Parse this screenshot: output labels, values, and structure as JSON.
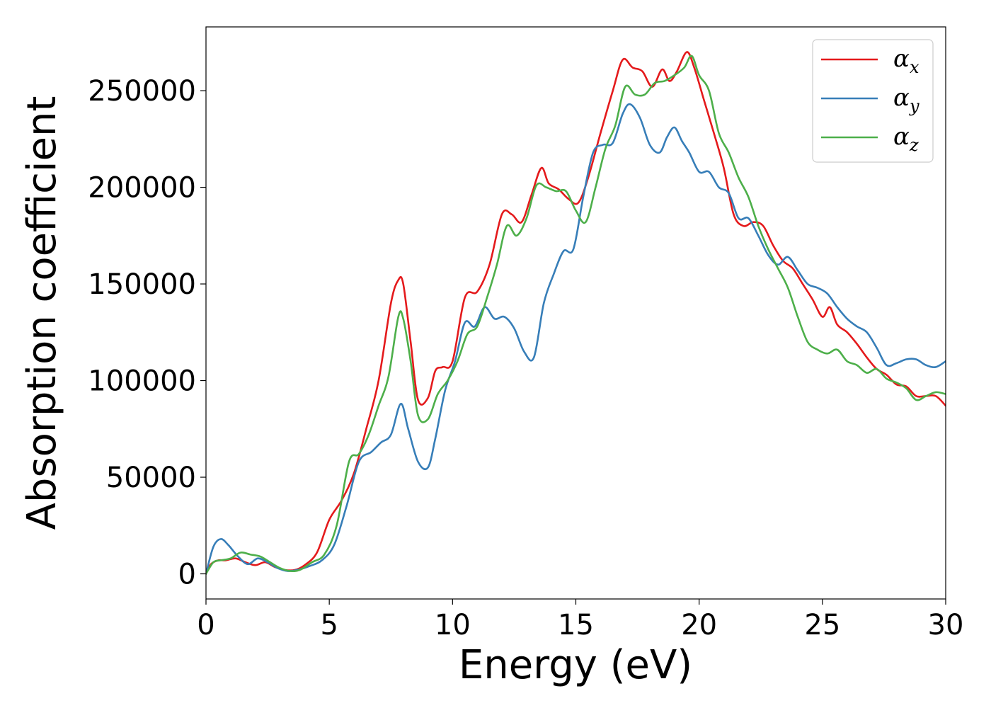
{
  "chart_data": {
    "type": "line",
    "title": "",
    "xlabel": "Energy (eV)",
    "ylabel": "Absorption coefficient",
    "xlim": [
      0,
      30
    ],
    "ylim": [
      -13000,
      283000
    ],
    "xticks": [
      0,
      5,
      10,
      15,
      20,
      25,
      30
    ],
    "xtick_labels": [
      "0",
      "5",
      "10",
      "15",
      "20",
      "25",
      "30"
    ],
    "yticks": [
      0,
      50000,
      100000,
      150000,
      200000,
      250000
    ],
    "ytick_labels": [
      "0",
      "50000",
      "100000",
      "150000",
      "200000",
      "250000"
    ],
    "grid": false,
    "legend_position": "top-right",
    "series": [
      {
        "name": "α",
        "subscript": "x",
        "color": "#e41a1c",
        "x": [
          0,
          0.2,
          0.5,
          0.8,
          1.2,
          1.6,
          2.0,
          2.4,
          2.8,
          3.2,
          3.6,
          4.0,
          4.5,
          5.0,
          5.5,
          6.0,
          6.5,
          7.0,
          7.5,
          7.8,
          8.0,
          8.3,
          8.6,
          9.0,
          9.3,
          9.6,
          10.0,
          10.5,
          11.0,
          11.5,
          12.0,
          12.4,
          12.8,
          13.2,
          13.6,
          13.9,
          14.3,
          14.7,
          15.1,
          15.5,
          16.0,
          16.5,
          16.9,
          17.3,
          17.7,
          18.1,
          18.5,
          18.8,
          19.1,
          19.5,
          19.8,
          20.2,
          20.6,
          21.0,
          21.4,
          21.8,
          22.2,
          22.6,
          23.0,
          23.4,
          23.8,
          24.2,
          24.6,
          25.0,
          25.3,
          25.6,
          26.0,
          26.4,
          26.8,
          27.2,
          27.6,
          28.0,
          28.4,
          28.8,
          29.2,
          29.6,
          30.0
        ],
        "values": [
          0,
          5000,
          7000,
          7000,
          8000,
          6000,
          4500,
          6000,
          3500,
          2000,
          2000,
          4500,
          11000,
          28000,
          38000,
          52000,
          75000,
          100000,
          140000,
          152000,
          150000,
          120000,
          90000,
          91000,
          105000,
          107000,
          110000,
          143000,
          146000,
          160000,
          186000,
          186000,
          182000,
          196000,
          210000,
          202000,
          199000,
          194000,
          192000,
          205000,
          228000,
          250000,
          266000,
          262000,
          260000,
          252000,
          261000,
          255000,
          260000,
          270000,
          262000,
          245000,
          228000,
          210000,
          186000,
          180000,
          182000,
          180000,
          170000,
          162000,
          158000,
          150000,
          142000,
          133000,
          138000,
          129000,
          125000,
          119000,
          112000,
          106000,
          103000,
          98000,
          97000,
          92000,
          92000,
          92000,
          87000
        ]
      },
      {
        "name": "α",
        "subscript": "y",
        "color": "#377eb8",
        "x": [
          0,
          0.3,
          0.6,
          0.9,
          1.3,
          1.7,
          2.1,
          2.5,
          2.9,
          3.3,
          3.7,
          4.2,
          4.7,
          5.2,
          5.7,
          6.2,
          6.7,
          7.1,
          7.5,
          7.9,
          8.2,
          8.6,
          9.0,
          9.3,
          9.7,
          10.1,
          10.5,
          10.9,
          11.3,
          11.7,
          12.1,
          12.5,
          12.9,
          13.3,
          13.7,
          14.1,
          14.5,
          14.9,
          15.3,
          15.7,
          16.1,
          16.5,
          16.9,
          17.2,
          17.6,
          18.0,
          18.4,
          18.7,
          19.0,
          19.3,
          19.6,
          20.0,
          20.4,
          20.8,
          21.2,
          21.6,
          22.0,
          22.4,
          22.8,
          23.2,
          23.6,
          24.0,
          24.4,
          24.8,
          25.2,
          25.6,
          26.0,
          26.4,
          26.8,
          27.2,
          27.6,
          28.0,
          28.4,
          28.8,
          29.2,
          29.6,
          30.0
        ],
        "values": [
          0,
          14000,
          18000,
          15000,
          9000,
          5000,
          8000,
          6000,
          3000,
          1500,
          2000,
          4000,
          7000,
          15000,
          35000,
          58000,
          63000,
          68000,
          72000,
          88000,
          75000,
          58000,
          55000,
          70000,
          95000,
          110000,
          130000,
          128000,
          138000,
          132000,
          133000,
          127000,
          115000,
          112000,
          140000,
          155000,
          167000,
          168000,
          195000,
          218000,
          222000,
          223000,
          238000,
          243000,
          236000,
          222000,
          218000,
          226000,
          231000,
          224000,
          218000,
          208000,
          208000,
          200000,
          197000,
          184000,
          184000,
          175000,
          165000,
          160000,
          164000,
          157000,
          150000,
          148000,
          145000,
          138000,
          132000,
          128000,
          125000,
          117000,
          108000,
          109000,
          111000,
          111000,
          108000,
          107000,
          110000
        ]
      },
      {
        "name": "α",
        "subscript": "z",
        "color": "#4daf4a",
        "x": [
          0,
          0.3,
          0.6,
          1.0,
          1.4,
          1.8,
          2.2,
          2.6,
          3.0,
          3.4,
          3.8,
          4.3,
          4.8,
          5.3,
          5.8,
          6.2,
          6.6,
          7.0,
          7.4,
          7.8,
          8.0,
          8.3,
          8.6,
          9.0,
          9.4,
          9.8,
          10.2,
          10.6,
          11.0,
          11.4,
          11.8,
          12.2,
          12.6,
          13.0,
          13.4,
          13.8,
          14.2,
          14.6,
          15.0,
          15.4,
          15.8,
          16.2,
          16.6,
          17.0,
          17.4,
          17.8,
          18.2,
          18.6,
          19.0,
          19.4,
          19.7,
          20.0,
          20.4,
          20.8,
          21.2,
          21.6,
          22.0,
          22.4,
          22.8,
          23.2,
          23.6,
          24.0,
          24.4,
          24.8,
          25.2,
          25.6,
          26.0,
          26.4,
          26.8,
          27.2,
          27.6,
          28.0,
          28.4,
          28.8,
          29.2,
          29.6,
          30.0
        ],
        "values": [
          0,
          6000,
          7000,
          8000,
          11000,
          10000,
          9000,
          6000,
          3000,
          1500,
          2000,
          6000,
          10000,
          25000,
          58000,
          62000,
          72000,
          87000,
          102000,
          133000,
          132000,
          110000,
          82000,
          80000,
          93000,
          100000,
          110000,
          124000,
          128000,
          143000,
          160000,
          180000,
          175000,
          184000,
          201000,
          200000,
          198000,
          198000,
          188000,
          182000,
          200000,
          220000,
          232000,
          252000,
          248000,
          248000,
          254000,
          255000,
          258000,
          262000,
          268000,
          258000,
          250000,
          228000,
          218000,
          205000,
          195000,
          180000,
          168000,
          158000,
          148000,
          133000,
          120000,
          116000,
          114000,
          116000,
          110000,
          108000,
          104000,
          106000,
          101000,
          99000,
          96000,
          90000,
          92000,
          94000,
          93000
        ]
      }
    ]
  }
}
